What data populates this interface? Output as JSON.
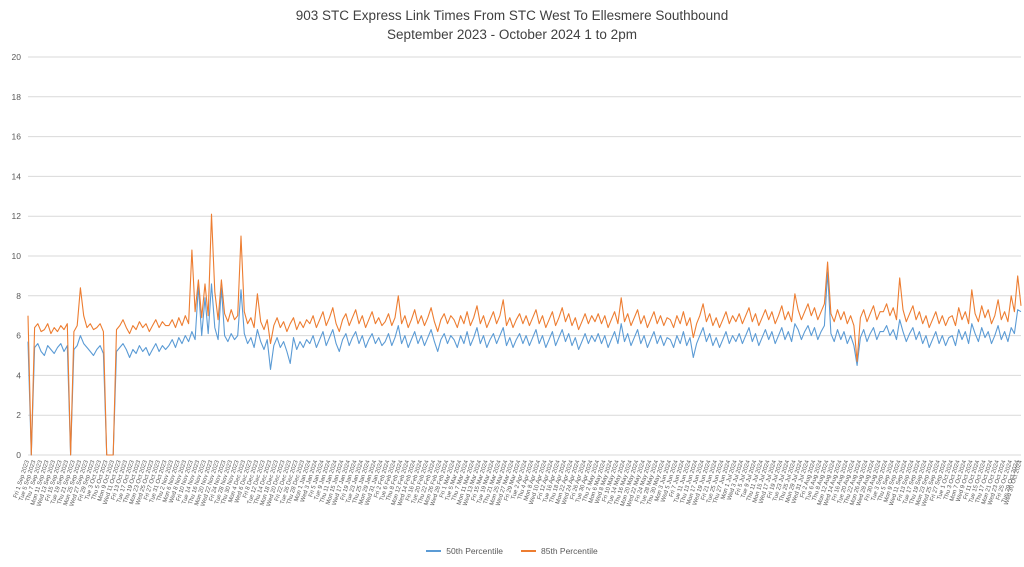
{
  "title": {
    "line1": "903 STC Express Link Times From STC West To Ellesmere Southbound",
    "line2": "September 2023 - October 2024 1 to 2pm"
  },
  "legend": [
    {
      "label": "50th Percentile",
      "color": "#5B9BD5"
    },
    {
      "label": "85th Percentile",
      "color": "#ED7D31"
    }
  ],
  "chart_data": {
    "type": "line",
    "title": "903 STC Express Link Times From STC West To Ellesmere Southbound",
    "subtitle": "September 2023 - October 2024 1 to 2pm",
    "xlabel": "",
    "ylabel": "",
    "ylim": [
      0,
      20
    ],
    "ytick_step": 2,
    "grid": true,
    "legend_position": "bottom",
    "x_label_every": 2,
    "x": [
      "Fri 1 Sep 2023",
      "Mon 4 Sep 2023",
      "Tue 5 Sep 2023",
      "Wed 6 Sep 2023",
      "Thu 7 Sep 2023",
      "Fri 8 Sep 2023",
      "Mon 11 Sep 2023",
      "Tue 12 Sep 2023",
      "Wed 13 Sep 2023",
      "Thu 14 Sep 2023",
      "Fri 15 Sep 2023",
      "Mon 18 Sep 2023",
      "Tue 19 Sep 2023",
      "Wed 20 Sep 2023",
      "Thu 21 Sep 2023",
      "Fri 22 Sep 2023",
      "Mon 25 Sep 2023",
      "Tue 26 Sep 2023",
      "Wed 27 Sep 2023",
      "Thu 28 Sep 2023",
      "Fri 29 Sep 2023",
      "Mon 2 Oct 2023",
      "Tue 3 Oct 2023",
      "Wed 4 Oct 2023",
      "Thu 5 Oct 2023",
      "Fri 6 Oct 2023",
      "Mon 9 Oct 2023",
      "Tue 10 Oct 2023",
      "Wed 11 Oct 2023",
      "Thu 12 Oct 2023",
      "Fri 13 Oct 2023",
      "Mon 16 Oct 2023",
      "Tue 17 Oct 2023",
      "Wed 18 Oct 2023",
      "Thu 19 Oct 2023",
      "Fri 20 Oct 2023",
      "Mon 23 Oct 2023",
      "Tue 24 Oct 2023",
      "Wed 25 Oct 2023",
      "Thu 26 Oct 2023",
      "Fri 27 Oct 2023",
      "Mon 30 Oct 2023",
      "Tue 31 Oct 2023",
      "Wed 1 Nov 2023",
      "Thu 2 Nov 2023",
      "Fri 3 Nov 2023",
      "Mon 6 Nov 2023",
      "Tue 7 Nov 2023",
      "Wed 8 Nov 2023",
      "Thu 9 Nov 2023",
      "Fri 10 Nov 2023",
      "Mon 13 Nov 2023",
      "Tue 14 Nov 2023",
      "Wed 15 Nov 2023",
      "Thu 16 Nov 2023",
      "Fri 17 Nov 2023",
      "Mon 20 Nov 2023",
      "Tue 21 Nov 2023",
      "Wed 22 Nov 2023",
      "Thu 23 Nov 2023",
      "Fri 24 Nov 2023",
      "Mon 27 Nov 2023",
      "Tue 28 Nov 2023",
      "Wed 29 Nov 2023",
      "Thu 30 Nov 2023",
      "Fri 1 Dec 2023",
      "Mon 4 Dec 2023",
      "Tue 5 Dec 2023",
      "Wed 6 Dec 2023",
      "Thu 7 Dec 2023",
      "Fri 8 Dec 2023",
      "Mon 11 Dec 2023",
      "Tue 12 Dec 2023",
      "Wed 13 Dec 2023",
      "Thu 14 Dec 2023",
      "Fri 15 Dec 2023",
      "Mon 18 Dec 2023",
      "Tue 19 Dec 2023",
      "Wed 20 Dec 2023",
      "Thu 21 Dec 2023",
      "Fri 22 Dec 2023",
      "Mon 25 Dec 2023",
      "Tue 26 Dec 2023",
      "Wed 27 Dec 2023",
      "Thu 28 Dec 2023",
      "Fri 29 Dec 2023",
      "Mon 1 Jan 2024",
      "Tue 2 Jan 2024",
      "Wed 3 Jan 2024",
      "Thu 4 Jan 2024",
      "Fri 5 Jan 2024",
      "Mon 8 Jan 2024",
      "Tue 9 Jan 2024",
      "Wed 10 Jan 2024",
      "Thu 11 Jan 2024",
      "Fri 12 Jan 2024",
      "Mon 15 Jan 2024",
      "Tue 16 Jan 2024",
      "Wed 17 Jan 2024",
      "Thu 18 Jan 2024",
      "Fri 19 Jan 2024",
      "Mon 22 Jan 2024",
      "Tue 23 Jan 2024",
      "Wed 24 Jan 2024",
      "Thu 25 Jan 2024",
      "Fri 26 Jan 2024",
      "Mon 29 Jan 2024",
      "Tue 30 Jan 2024",
      "Wed 31 Jan 2024",
      "Thu 1 Feb 2024",
      "Fri 2 Feb 2024",
      "Mon 5 Feb 2024",
      "Tue 6 Feb 2024",
      "Wed 7 Feb 2024",
      "Thu 8 Feb 2024",
      "Fri 9 Feb 2024",
      "Mon 12 Feb 2024",
      "Tue 13 Feb 2024",
      "Wed 14 Feb 2024",
      "Thu 15 Feb 2024",
      "Fri 16 Feb 2024",
      "Mon 19 Feb 2024",
      "Tue 20 Feb 2024",
      "Wed 21 Feb 2024",
      "Thu 22 Feb 2024",
      "Fri 23 Feb 2024",
      "Mon 26 Feb 2024",
      "Tue 27 Feb 2024",
      "Wed 28 Feb 2024",
      "Thu 29 Feb 2024",
      "Fri 1 Mar 2024",
      "Mon 4 Mar 2024",
      "Tue 5 Mar 2024",
      "Wed 6 Mar 2024",
      "Thu 7 Mar 2024",
      "Fri 8 Mar 2024",
      "Mon 11 Mar 2024",
      "Tue 12 Mar 2024",
      "Wed 13 Mar 2024",
      "Thu 14 Mar 2024",
      "Fri 15 Mar 2024",
      "Mon 18 Mar 2024",
      "Tue 19 Mar 2024",
      "Wed 20 Mar 2024",
      "Thu 21 Mar 2024",
      "Fri 22 Mar 2024",
      "Mon 25 Mar 2024",
      "Tue 26 Mar 2024",
      "Wed 27 Mar 2024",
      "Thu 28 Mar 2024",
      "Fri 29 Mar 2024",
      "Mon 1 Apr 2024",
      "Tue 2 Apr 2024",
      "Wed 3 Apr 2024",
      "Thu 4 Apr 2024",
      "Fri 5 Apr 2024",
      "Mon 8 Apr 2024",
      "Tue 9 Apr 2024",
      "Wed 10 Apr 2024",
      "Thu 11 Apr 2024",
      "Fri 12 Apr 2024",
      "Mon 15 Apr 2024",
      "Tue 16 Apr 2024",
      "Wed 17 Apr 2024",
      "Thu 18 Apr 2024",
      "Fri 19 Apr 2024",
      "Mon 22 Apr 2024",
      "Tue 23 Apr 2024",
      "Wed 24 Apr 2024",
      "Thu 25 Apr 2024",
      "Fri 26 Apr 2024",
      "Mon 29 Apr 2024",
      "Tue 30 Apr 2024",
      "Wed 1 May 2024",
      "Thu 2 May 2024",
      "Fri 3 May 2024",
      "Mon 6 May 2024",
      "Tue 7 May 2024",
      "Wed 8 May 2024",
      "Thu 9 May 2024",
      "Fri 10 May 2024",
      "Mon 13 May 2024",
      "Tue 14 May 2024",
      "Wed 15 May 2024",
      "Thu 16 May 2024",
      "Fri 17 May 2024",
      "Mon 20 May 2024",
      "Tue 21 May 2024",
      "Wed 22 May 2024",
      "Thu 23 May 2024",
      "Fri 24 May 2024",
      "Mon 27 May 2024",
      "Tue 28 May 2024",
      "Wed 29 May 2024",
      "Thu 30 May 2024",
      "Fri 31 May 2024",
      "Mon 3 Jun 2024",
      "Tue 4 Jun 2024",
      "Wed 5 Jun 2024",
      "Thu 6 Jun 2024",
      "Fri 7 Jun 2024",
      "Mon 10 Jun 2024",
      "Tue 11 Jun 2024",
      "Wed 12 Jun 2024",
      "Thu 13 Jun 2024",
      "Fri 14 Jun 2024",
      "Mon 17 Jun 2024",
      "Tue 18 Jun 2024",
      "Wed 19 Jun 2024",
      "Thu 20 Jun 2024",
      "Fri 21 Jun 2024",
      "Mon 24 Jun 2024",
      "Tue 25 Jun 2024",
      "Wed 26 Jun 2024",
      "Thu 27 Jun 2024",
      "Fri 28 Jun 2024",
      "Mon 1 Jul 2024",
      "Tue 2 Jul 2024",
      "Wed 3 Jul 2024",
      "Thu 4 Jul 2024",
      "Fri 5 Jul 2024",
      "Mon 8 Jul 2024",
      "Tue 9 Jul 2024",
      "Wed 10 Jul 2024",
      "Thu 11 Jul 2024",
      "Fri 12 Jul 2024",
      "Mon 15 Jul 2024",
      "Tue 16 Jul 2024",
      "Wed 17 Jul 2024",
      "Thu 18 Jul 2024",
      "Fri 19 Jul 2024",
      "Mon 22 Jul 2024",
      "Tue 23 Jul 2024",
      "Wed 24 Jul 2024",
      "Thu 25 Jul 2024",
      "Fri 26 Jul 2024",
      "Mon 29 Jul 2024",
      "Tue 30 Jul 2024",
      "Wed 31 Jul 2024",
      "Thu 1 Aug 2024",
      "Fri 2 Aug 2024",
      "Mon 5 Aug 2024",
      "Tue 6 Aug 2024",
      "Wed 7 Aug 2024",
      "Thu 8 Aug 2024",
      "Fri 9 Aug 2024",
      "Mon 12 Aug 2024",
      "Tue 13 Aug 2024",
      "Wed 14 Aug 2024",
      "Thu 15 Aug 2024",
      "Fri 16 Aug 2024",
      "Mon 19 Aug 2024",
      "Tue 20 Aug 2024",
      "Wed 21 Aug 2024",
      "Thu 22 Aug 2024",
      "Fri 23 Aug 2024",
      "Mon 26 Aug 2024",
      "Tue 27 Aug 2024",
      "Wed 28 Aug 2024",
      "Thu 29 Aug 2024",
      "Fri 30 Aug 2024",
      "Mon 2 Sep 2024",
      "Tue 3 Sep 2024",
      "Wed 4 Sep 2024",
      "Thu 5 Sep 2024",
      "Fri 6 Sep 2024",
      "Mon 9 Sep 2024",
      "Tue 10 Sep 2024",
      "Wed 11 Sep 2024",
      "Thu 12 Sep 2024",
      "Fri 13 Sep 2024",
      "Mon 16 Sep 2024",
      "Tue 17 Sep 2024",
      "Wed 18 Sep 2024",
      "Thu 19 Sep 2024",
      "Fri 20 Sep 2024",
      "Mon 23 Sep 2024",
      "Tue 24 Sep 2024",
      "Wed 25 Sep 2024",
      "Thu 26 Sep 2024",
      "Fri 27 Sep 2024",
      "Mon 30 Sep 2024",
      "Tue 1 Oct 2024",
      "Wed 2 Oct 2024",
      "Thu 3 Oct 2024",
      "Fri 4 Oct 2024",
      "Mon 7 Oct 2024",
      "Tue 8 Oct 2024",
      "Wed 9 Oct 2024",
      "Thu 10 Oct 2024",
      "Fri 11 Oct 2024",
      "Mon 14 Oct 2024",
      "Tue 15 Oct 2024",
      "Wed 16 Oct 2024",
      "Thu 17 Oct 2024",
      "Fri 18 Oct 2024",
      "Mon 21 Oct 2024",
      "Tue 22 Oct 2024",
      "Wed 23 Oct 2024",
      "Thu 24 Oct 2024",
      "Fri 25 Oct 2024",
      "Mon 28 Oct 2024",
      "Tue 29 Oct 2024",
      "Wed 30 Oct 2024"
    ],
    "series": [
      {
        "name": "50th Percentile",
        "color": "#5B9BD5",
        "values": [
          5.7,
          0,
          5.4,
          5.6,
          5.2,
          5.0,
          5.5,
          5.3,
          5.1,
          5.4,
          5.6,
          5.2,
          5.5,
          0,
          5.3,
          5.5,
          6.0,
          5.6,
          5.4,
          5.2,
          5.0,
          5.3,
          5.5,
          5.1,
          0,
          0,
          0,
          5.2,
          5.4,
          5.6,
          5.3,
          4.9,
          5.3,
          5.1,
          5.5,
          5.2,
          5.4,
          5.0,
          5.3,
          5.6,
          5.2,
          5.5,
          5.3,
          5.5,
          5.8,
          5.4,
          5.9,
          5.6,
          6.0,
          5.7,
          6.2,
          5.8,
          8.5,
          6.0,
          7.9,
          6.1,
          8.6,
          6.4,
          5.8,
          8.4,
          6.0,
          5.7,
          6.1,
          5.8,
          6.0,
          8.3,
          6.1,
          5.6,
          5.9,
          5.4,
          6.3,
          5.7,
          5.3,
          5.8,
          4.3,
          5.5,
          5.9,
          5.4,
          5.7,
          5.2,
          4.6,
          5.9,
          5.3,
          5.7,
          5.4,
          5.8,
          5.6,
          6.0,
          5.4,
          5.8,
          6.2,
          5.5,
          5.9,
          6.3,
          5.6,
          5.2,
          5.8,
          6.1,
          5.5,
          5.9,
          6.2,
          5.6,
          6.0,
          5.4,
          5.8,
          6.1,
          5.6,
          5.9,
          5.5,
          5.7,
          6.1,
          5.5,
          5.9,
          6.5,
          5.6,
          6.0,
          5.4,
          5.8,
          6.2,
          5.6,
          6.0,
          5.5,
          5.9,
          6.3,
          5.7,
          5.2,
          5.8,
          6.1,
          5.6,
          6.0,
          5.8,
          5.4,
          6.0,
          5.6,
          6.2,
          5.5,
          5.9,
          6.4,
          5.6,
          6.0,
          5.4,
          5.8,
          6.1,
          5.6,
          6.0,
          6.4,
          5.5,
          5.9,
          5.4,
          5.8,
          6.1,
          5.6,
          6.0,
          5.5,
          5.9,
          6.3,
          5.6,
          6.0,
          5.4,
          5.8,
          6.2,
          5.5,
          5.9,
          6.3,
          5.7,
          6.1,
          5.5,
          5.9,
          5.3,
          5.7,
          6.1,
          5.6,
          6.0,
          5.7,
          6.1,
          5.6,
          6.0,
          5.4,
          5.8,
          6.2,
          5.6,
          6.6,
          5.7,
          6.1,
          5.5,
          5.9,
          6.3,
          5.6,
          6.0,
          5.4,
          5.8,
          6.2,
          5.6,
          6.0,
          5.5,
          5.9,
          5.8,
          5.4,
          6.0,
          5.6,
          6.2,
          5.5,
          5.9,
          4.9,
          5.6,
          6.0,
          6.4,
          5.7,
          6.1,
          5.5,
          5.9,
          5.4,
          5.8,
          6.2,
          5.6,
          6.0,
          5.7,
          6.1,
          5.6,
          6.0,
          6.4,
          5.7,
          6.1,
          5.5,
          5.9,
          6.3,
          5.8,
          6.2,
          5.6,
          6.0,
          6.4,
          5.8,
          6.2,
          5.7,
          6.6,
          6.3,
          5.8,
          6.2,
          6.5,
          6.0,
          6.4,
          5.8,
          6.2,
          6.5,
          9.2,
          6.1,
          5.7,
          6.3,
          5.8,
          6.2,
          5.6,
          6.0,
          5.5,
          4.5,
          5.9,
          6.3,
          5.7,
          6.1,
          6.4,
          5.8,
          6.2,
          6.2,
          6.5,
          6.0,
          6.3,
          5.8,
          6.8,
          6.2,
          5.7,
          6.1,
          6.4,
          5.8,
          6.2,
          5.6,
          6.0,
          5.4,
          5.8,
          6.2,
          5.6,
          6.0,
          5.5,
          5.9,
          6.0,
          5.5,
          6.3,
          5.8,
          6.2,
          5.6,
          6.6,
          6.1,
          5.7,
          6.4,
          5.9,
          6.2,
          5.6,
          6.0,
          6.5,
          5.8,
          6.2,
          5.7,
          6.4,
          6.1,
          7.3,
          7.2
        ]
      },
      {
        "name": "85th Percentile",
        "color": "#ED7D31",
        "values": [
          7.0,
          0,
          6.4,
          6.6,
          6.2,
          6.3,
          6.6,
          6.1,
          6.4,
          6.2,
          6.5,
          6.3,
          6.6,
          0,
          6.2,
          6.5,
          8.4,
          7.0,
          6.4,
          6.6,
          6.3,
          6.4,
          6.6,
          6.2,
          0,
          0,
          0,
          6.3,
          6.5,
          6.8,
          6.4,
          6.1,
          6.5,
          6.3,
          6.7,
          6.4,
          6.6,
          6.2,
          6.5,
          6.8,
          6.4,
          6.7,
          6.5,
          6.5,
          6.8,
          6.4,
          6.9,
          6.5,
          7.0,
          6.6,
          10.3,
          7.2,
          8.8,
          6.9,
          8.6,
          7.0,
          12.1,
          8.2,
          6.8,
          8.8,
          7.1,
          6.7,
          7.3,
          6.8,
          7.0,
          11.0,
          7.2,
          6.6,
          6.9,
          6.4,
          8.1,
          6.7,
          6.3,
          6.8,
          5.6,
          6.5,
          6.9,
          6.4,
          6.7,
          6.2,
          6.6,
          6.9,
          6.3,
          6.7,
          6.4,
          6.8,
          6.6,
          7.0,
          6.4,
          6.8,
          7.2,
          6.5,
          6.9,
          7.4,
          6.6,
          6.2,
          6.8,
          7.1,
          6.5,
          6.9,
          7.3,
          6.6,
          7.0,
          6.4,
          6.8,
          7.2,
          6.6,
          6.9,
          6.5,
          6.7,
          7.1,
          6.5,
          6.9,
          8.0,
          6.6,
          7.0,
          6.4,
          6.8,
          7.3,
          6.6,
          7.0,
          6.5,
          6.9,
          7.4,
          6.7,
          6.2,
          6.8,
          7.1,
          6.6,
          7.0,
          6.8,
          6.4,
          7.0,
          6.6,
          7.2,
          6.5,
          6.9,
          7.5,
          6.6,
          7.0,
          6.4,
          6.8,
          7.2,
          6.6,
          7.0,
          7.8,
          6.5,
          6.9,
          6.4,
          6.8,
          7.1,
          6.6,
          7.0,
          6.5,
          6.9,
          7.3,
          6.6,
          7.0,
          6.4,
          6.8,
          7.2,
          6.5,
          6.9,
          7.4,
          6.7,
          7.1,
          6.5,
          6.9,
          6.3,
          6.7,
          7.1,
          6.6,
          7.0,
          6.7,
          7.1,
          6.6,
          7.0,
          6.4,
          6.8,
          7.2,
          6.6,
          7.9,
          6.7,
          7.1,
          6.5,
          6.9,
          7.3,
          6.6,
          7.0,
          6.4,
          6.8,
          7.2,
          6.6,
          7.0,
          6.5,
          6.9,
          6.8,
          6.4,
          7.0,
          6.6,
          7.2,
          6.5,
          6.9,
          5.9,
          6.6,
          7.0,
          7.6,
          6.7,
          7.1,
          6.5,
          6.9,
          6.4,
          6.8,
          7.2,
          6.6,
          7.0,
          6.7,
          7.1,
          6.6,
          7.0,
          7.4,
          6.7,
          7.1,
          6.5,
          6.9,
          7.3,
          6.8,
          7.2,
          6.6,
          7.0,
          7.5,
          6.8,
          7.2,
          6.7,
          8.1,
          7.3,
          6.8,
          7.2,
          7.6,
          7.0,
          7.4,
          6.8,
          7.2,
          7.6,
          9.7,
          7.1,
          6.7,
          7.3,
          6.8,
          7.2,
          6.6,
          7.0,
          6.5,
          4.7,
          6.9,
          7.3,
          6.7,
          7.1,
          7.5,
          6.8,
          7.2,
          7.2,
          7.6,
          7.0,
          7.4,
          6.8,
          8.9,
          7.3,
          6.7,
          7.1,
          7.5,
          6.8,
          7.2,
          6.6,
          7.0,
          6.4,
          6.8,
          7.2,
          6.6,
          7.0,
          6.5,
          6.9,
          7.0,
          6.5,
          7.4,
          6.8,
          7.2,
          6.6,
          8.3,
          7.1,
          6.7,
          7.5,
          6.9,
          7.3,
          6.6,
          7.0,
          7.8,
          6.8,
          7.2,
          6.7,
          8.0,
          7.2,
          9.0,
          7.5
        ]
      }
    ]
  }
}
